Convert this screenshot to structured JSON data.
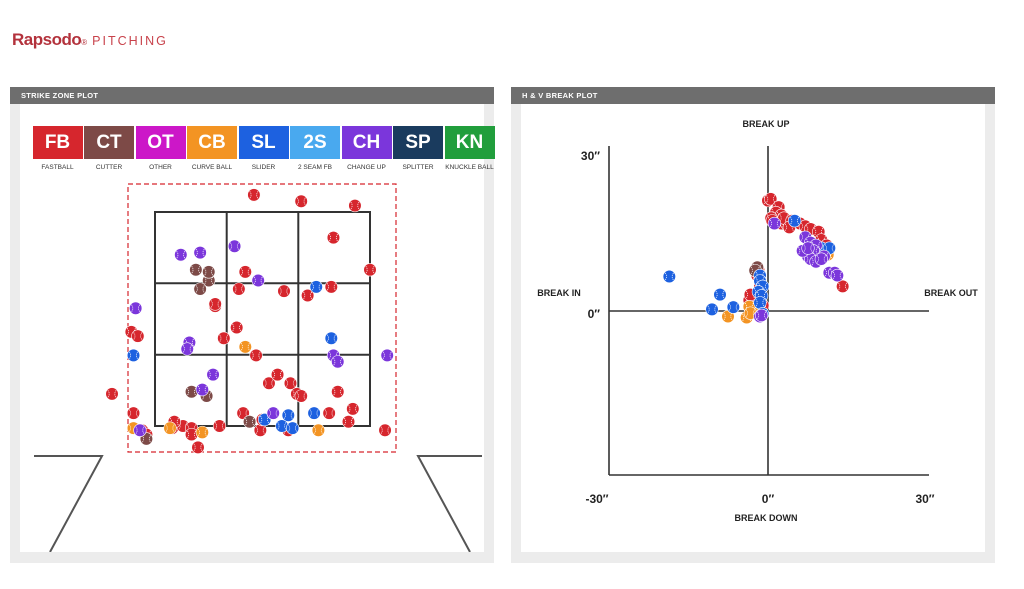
{
  "brand": {
    "name": "Rapsodo",
    "reg": "®",
    "tag": "PITCHING"
  },
  "panels": {
    "strike_zone": {
      "title": "STRIKE ZONE PLOT"
    },
    "break_plot": {
      "title": "H & V BREAK PLOT"
    }
  },
  "legend": [
    {
      "code": "FB",
      "label": "FASTBALL",
      "color": "#d6262d"
    },
    {
      "code": "CT",
      "label": "CUTTER",
      "color": "#7d4a47"
    },
    {
      "code": "OT",
      "label": "OTHER",
      "color": "#cc17c8"
    },
    {
      "code": "CB",
      "label": "CURVE BALL",
      "color": "#f39423"
    },
    {
      "code": "SL",
      "label": "SLIDER",
      "color": "#1d61e0"
    },
    {
      "code": "2S",
      "label": "2 SEAM FB",
      "color": "#49a9ef"
    },
    {
      "code": "CH",
      "label": "CHANGE UP",
      "color": "#7b36db"
    },
    {
      "code": "SP",
      "label": "SPLITTER",
      "color": "#1a3b5e"
    },
    {
      "code": "KN",
      "label": "KNUCKLE BALL",
      "color": "#219e3c"
    }
  ],
  "chart_data": [
    {
      "type": "scatter",
      "title": "STRIKE ZONE PLOT",
      "xlabel": "",
      "ylabel": "",
      "zone": {
        "grid": "3x3"
      },
      "series": [
        {
          "name": "FASTBALL",
          "color": "#d6262d",
          "points": [
            [
              0.46,
              1.08
            ],
            [
              0.68,
              1.05
            ],
            [
              0.93,
              1.03
            ],
            [
              0.83,
              0.88
            ],
            [
              0.42,
              0.72
            ],
            [
              0.28,
              0.56
            ],
            [
              0.39,
              0.64
            ],
            [
              0.6,
              0.63
            ],
            [
              0.71,
              0.61
            ],
            [
              1.0,
              0.73
            ],
            [
              -0.11,
              0.44
            ],
            [
              -0.08,
              0.42
            ],
            [
              0.38,
              0.46
            ],
            [
              0.32,
              0.41
            ],
            [
              0.47,
              0.33
            ],
            [
              0.53,
              0.2
            ],
            [
              0.63,
              0.2
            ],
            [
              0.66,
              0.15
            ],
            [
              0.68,
              0.14
            ],
            [
              0.85,
              0.16
            ],
            [
              0.81,
              0.06
            ],
            [
              0.57,
              0.24
            ],
            [
              0.9,
              0.02
            ],
            [
              -0.06,
              -0.02
            ],
            [
              0.08,
              -0.01
            ],
            [
              -0.04,
              -0.04
            ],
            [
              0.13,
              0.0
            ],
            [
              0.3,
              0.0
            ],
            [
              0.49,
              -0.02
            ],
            [
              0.62,
              -0.02
            ],
            [
              0.09,
              0.02
            ],
            [
              0.17,
              -0.01
            ],
            [
              0.17,
              -0.04
            ],
            [
              0.2,
              -0.1
            ],
            [
              0.41,
              0.06
            ],
            [
              0.5,
              0.03
            ],
            [
              1.07,
              -0.02
            ],
            [
              -0.2,
              0.15
            ],
            [
              -0.1,
              0.06
            ],
            [
              0.28,
              0.57
            ],
            [
              0.92,
              0.08
            ],
            [
              0.82,
              0.65
            ]
          ]
        },
        {
          "name": "CUTTER",
          "color": "#7d4a47",
          "points": [
            [
              0.19,
              0.73
            ],
            [
              0.25,
              0.68
            ],
            [
              0.17,
              0.16
            ],
            [
              0.24,
              0.14
            ],
            [
              0.44,
              0.02
            ],
            [
              -0.04,
              -0.06
            ],
            [
              0.25,
              0.72
            ],
            [
              0.21,
              0.64
            ]
          ]
        },
        {
          "name": "CURVE BALL",
          "color": "#f39423",
          "points": [
            [
              0.42,
              0.37
            ],
            [
              0.76,
              -0.02
            ],
            [
              0.07,
              -0.01
            ],
            [
              -0.1,
              -0.01
            ],
            [
              0.22,
              -0.03
            ]
          ]
        },
        {
          "name": "SLIDER",
          "color": "#1d61e0",
          "points": [
            [
              0.75,
              0.65
            ],
            [
              0.82,
              0.41
            ],
            [
              -0.1,
              0.33
            ],
            [
              0.62,
              0.05
            ],
            [
              0.59,
              0.0
            ],
            [
              0.64,
              -0.01
            ],
            [
              0.51,
              0.03
            ],
            [
              0.55,
              0.06
            ],
            [
              0.74,
              0.06
            ]
          ]
        },
        {
          "name": "CHANGE UP",
          "color": "#7b36db",
          "points": [
            [
              0.37,
              0.84
            ],
            [
              0.12,
              0.8
            ],
            [
              0.21,
              0.81
            ],
            [
              0.48,
              0.68
            ],
            [
              -0.09,
              0.55
            ],
            [
              0.16,
              0.39
            ],
            [
              0.83,
              0.33
            ],
            [
              1.08,
              0.33
            ],
            [
              0.85,
              0.3
            ],
            [
              0.27,
              0.24
            ],
            [
              0.22,
              0.17
            ],
            [
              0.55,
              0.06
            ],
            [
              -0.07,
              -0.02
            ],
            [
              0.15,
              0.36
            ]
          ]
        }
      ]
    },
    {
      "type": "scatter",
      "title": "H & V BREAK PLOT",
      "xlabel_left": "BREAK IN",
      "xlabel_right": "BREAK OUT",
      "ylabel_top": "BREAK UP",
      "ylabel_bottom": "BREAK DOWN",
      "xlim": [
        -30,
        30
      ],
      "ylim": [
        -30,
        30
      ],
      "tick_labels": {
        "x_left": "-30″",
        "x_center": "0″",
        "x_right": "30″",
        "y_top": "30″",
        "y_center": "0″"
      },
      "series": [
        {
          "name": "FASTBALL",
          "color": "#d6262d",
          "points": [
            [
              0.0,
              20.2
            ],
            [
              0.5,
              20.5
            ],
            [
              2.0,
              19.0
            ],
            [
              1.5,
              18.0
            ],
            [
              2.5,
              17.5
            ],
            [
              0.6,
              17.0
            ],
            [
              2.5,
              16.0
            ],
            [
              3.5,
              16.0
            ],
            [
              3.0,
              17.0
            ],
            [
              4.5,
              16.5
            ],
            [
              6.0,
              16.0
            ],
            [
              7.0,
              15.5
            ],
            [
              8.0,
              15.0
            ],
            [
              9.5,
              14.5
            ],
            [
              10.0,
              13.0
            ],
            [
              11.0,
              12.0
            ],
            [
              14.0,
              4.5
            ],
            [
              0.8,
              16.5
            ],
            [
              -2.0,
              6.5
            ],
            [
              -1.8,
              7.5
            ],
            [
              -3.5,
              2.0
            ],
            [
              -2.5,
              1.5
            ],
            [
              -1.0,
              1.0
            ],
            [
              -1.5,
              4.5
            ],
            [
              -3.3,
              3.0
            ],
            [
              4.0,
              15.3
            ]
          ]
        },
        {
          "name": "CUTTER",
          "color": "#7d4a47",
          "points": [
            [
              -2.0,
              8.0
            ],
            [
              -2.4,
              7.4
            ]
          ]
        },
        {
          "name": "CURVE BALL",
          "color": "#f39423",
          "points": [
            [
              -3.5,
              0.8
            ],
            [
              -7.5,
              -1.0
            ],
            [
              -4.0,
              -1.2
            ],
            [
              -2.0,
              -0.5
            ],
            [
              11.2,
              10.3
            ],
            [
              -3.3,
              -0.4
            ]
          ]
        },
        {
          "name": "SLIDER",
          "color": "#1d61e0",
          "points": [
            [
              -18.5,
              6.3
            ],
            [
              -9.0,
              3.0
            ],
            [
              -10.5,
              0.3
            ],
            [
              -6.5,
              0.7
            ],
            [
              -1.5,
              6.5
            ],
            [
              -1.5,
              5.5
            ],
            [
              -1.0,
              4.5
            ],
            [
              -1.8,
              3.5
            ],
            [
              -1.2,
              2.8
            ],
            [
              -1.5,
              1.5
            ],
            [
              5.0,
              16.5
            ],
            [
              10.0,
              11.5
            ],
            [
              11.5,
              11.5
            ],
            [
              -1.0,
              -0.5
            ]
          ]
        },
        {
          "name": "CHANGE UP",
          "color": "#7b36db",
          "points": [
            [
              1.2,
              16.0
            ],
            [
              7.0,
              13.5
            ],
            [
              8.0,
              12.5
            ],
            [
              9.0,
              12.0
            ],
            [
              8.5,
              11.0
            ],
            [
              7.5,
              10.0
            ],
            [
              8.0,
              9.5
            ],
            [
              9.0,
              9.0
            ],
            [
              10.5,
              10.0
            ],
            [
              11.5,
              7.0
            ],
            [
              12.5,
              7.0
            ],
            [
              13.0,
              6.5
            ],
            [
              -1.5,
              -1.0
            ],
            [
              -1.2,
              -0.8
            ],
            [
              6.5,
              11.0
            ],
            [
              7.5,
              11.5
            ],
            [
              10.0,
              9.5
            ]
          ]
        }
      ]
    }
  ]
}
